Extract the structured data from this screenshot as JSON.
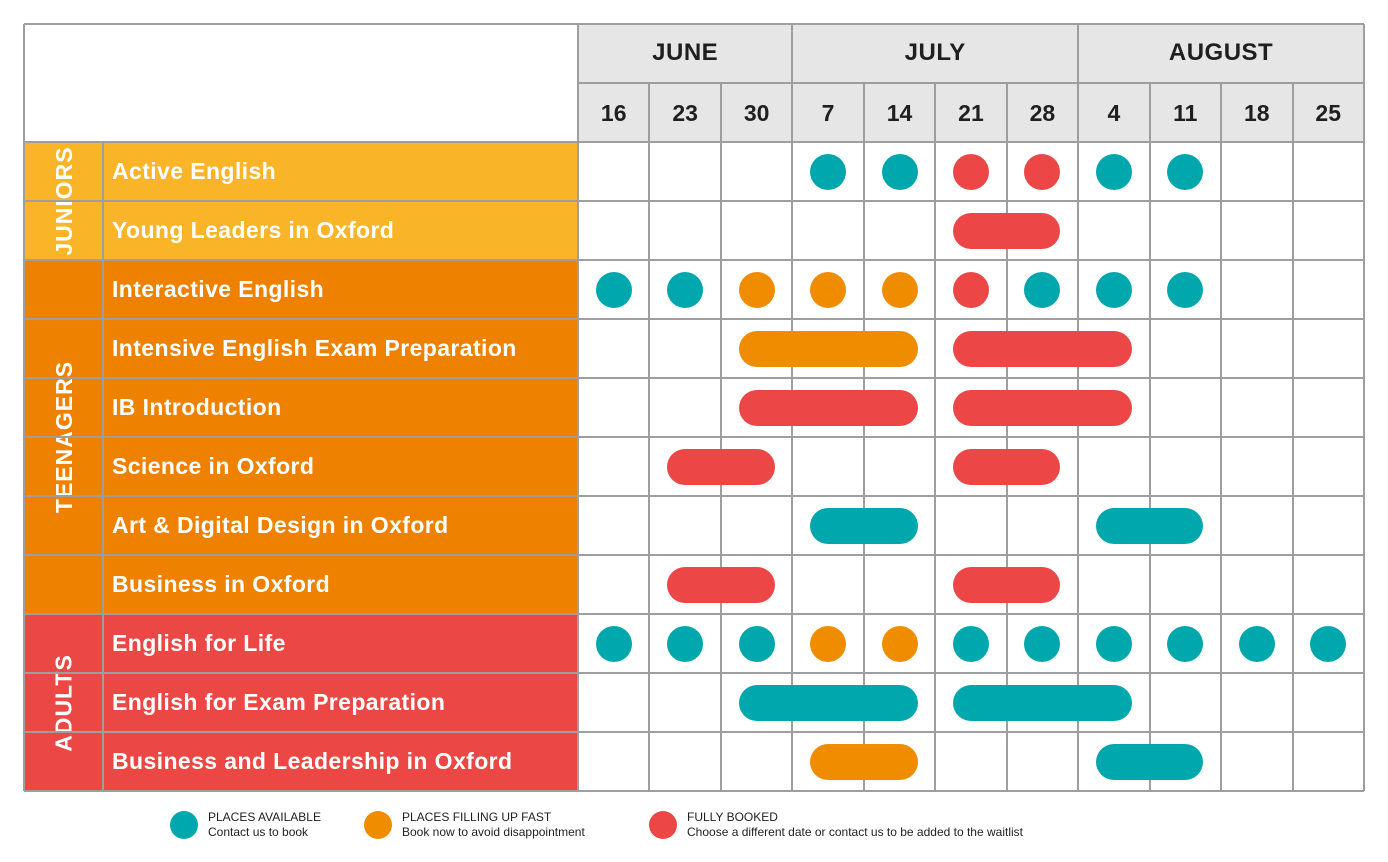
{
  "colors": {
    "available": "#00a8ad",
    "filling": "#f08c00",
    "booked": "#ec4646",
    "juniors_bg": "#f9b427",
    "teenagers_bg": "#ef8100",
    "adults_bg": "#eb4845",
    "header_bg": "#e6e6e6",
    "grid_line": "#9e9e9e"
  },
  "months": [
    {
      "label": "JUNE",
      "start": 0,
      "span": 3
    },
    {
      "label": "JULY",
      "start": 3,
      "span": 4
    },
    {
      "label": "AUGUST",
      "start": 7,
      "span": 4
    }
  ],
  "weeks": [
    "16",
    "23",
    "30",
    "7",
    "14",
    "21",
    "28",
    "4",
    "11",
    "18",
    "25"
  ],
  "groups": [
    {
      "label": "JUNIORS",
      "color": "#f9b427",
      "rows": 2
    },
    {
      "label": "TEENAGERS",
      "color": "#ef8100",
      "rows": 6
    },
    {
      "label": "ADULTS",
      "color": "#eb4845",
      "rows": 3
    }
  ],
  "courses": [
    {
      "name": "Active English",
      "marks": [
        {
          "type": "dot",
          "status": "available",
          "week": 3
        },
        {
          "type": "dot",
          "status": "available",
          "week": 4
        },
        {
          "type": "dot",
          "status": "booked",
          "week": 5
        },
        {
          "type": "dot",
          "status": "booked",
          "week": 6
        },
        {
          "type": "dot",
          "status": "available",
          "week": 7
        },
        {
          "type": "dot",
          "status": "available",
          "week": 8
        }
      ]
    },
    {
      "name": "Young Leaders in Oxford",
      "marks": [
        {
          "type": "bar",
          "status": "booked",
          "from": 5,
          "to": 6
        }
      ]
    },
    {
      "name": "Interactive English",
      "marks": [
        {
          "type": "dot",
          "status": "available",
          "week": 0
        },
        {
          "type": "dot",
          "status": "available",
          "week": 1
        },
        {
          "type": "dot",
          "status": "filling",
          "week": 2
        },
        {
          "type": "dot",
          "status": "filling",
          "week": 3
        },
        {
          "type": "dot",
          "status": "filling",
          "week": 4
        },
        {
          "type": "dot",
          "status": "booked",
          "week": 5
        },
        {
          "type": "dot",
          "status": "available",
          "week": 6
        },
        {
          "type": "dot",
          "status": "available",
          "week": 7
        },
        {
          "type": "dot",
          "status": "available",
          "week": 8
        }
      ]
    },
    {
      "name": "Intensive English Exam Preparation",
      "marks": [
        {
          "type": "bar",
          "status": "filling",
          "from": 2,
          "to": 4
        },
        {
          "type": "bar",
          "status": "booked",
          "from": 5,
          "to": 7
        }
      ]
    },
    {
      "name": "IB Introduction",
      "marks": [
        {
          "type": "bar",
          "status": "booked",
          "from": 2,
          "to": 4
        },
        {
          "type": "bar",
          "status": "booked",
          "from": 5,
          "to": 7
        }
      ]
    },
    {
      "name": "Science in Oxford",
      "marks": [
        {
          "type": "bar",
          "status": "booked",
          "from": 1,
          "to": 2
        },
        {
          "type": "bar",
          "status": "booked",
          "from": 5,
          "to": 6
        }
      ]
    },
    {
      "name": "Art & Digital Design in Oxford",
      "marks": [
        {
          "type": "bar",
          "status": "available",
          "from": 3,
          "to": 4
        },
        {
          "type": "bar",
          "status": "available",
          "from": 7,
          "to": 8
        }
      ]
    },
    {
      "name": "Business in Oxford",
      "marks": [
        {
          "type": "bar",
          "status": "booked",
          "from": 1,
          "to": 2
        },
        {
          "type": "bar",
          "status": "booked",
          "from": 5,
          "to": 6
        }
      ]
    },
    {
      "name": "English for Life",
      "marks": [
        {
          "type": "dot",
          "status": "available",
          "week": 0
        },
        {
          "type": "dot",
          "status": "available",
          "week": 1
        },
        {
          "type": "dot",
          "status": "available",
          "week": 2
        },
        {
          "type": "dot",
          "status": "filling",
          "week": 3
        },
        {
          "type": "dot",
          "status": "filling",
          "week": 4
        },
        {
          "type": "dot",
          "status": "available",
          "week": 5
        },
        {
          "type": "dot",
          "status": "available",
          "week": 6
        },
        {
          "type": "dot",
          "status": "available",
          "week": 7
        },
        {
          "type": "dot",
          "status": "available",
          "week": 8
        },
        {
          "type": "dot",
          "status": "available",
          "week": 9
        },
        {
          "type": "dot",
          "status": "available",
          "week": 10
        }
      ]
    },
    {
      "name": "English for Exam Preparation",
      "marks": [
        {
          "type": "bar",
          "status": "available",
          "from": 2,
          "to": 4
        },
        {
          "type": "bar",
          "status": "available",
          "from": 5,
          "to": 7
        }
      ]
    },
    {
      "name": "Business and Leadership in Oxford",
      "marks": [
        {
          "type": "bar",
          "status": "filling",
          "from": 3,
          "to": 4
        },
        {
          "type": "bar",
          "status": "available",
          "from": 7,
          "to": 8
        }
      ]
    }
  ],
  "legend": [
    {
      "status": "available",
      "title": "PLACES AVAILABLE",
      "subtitle": "Contact us to book"
    },
    {
      "status": "filling",
      "title": "PLACES FILLING UP FAST",
      "subtitle": "Book now to avoid disappointment"
    },
    {
      "status": "booked",
      "title": "FULLY BOOKED",
      "subtitle": "Choose a different date or contact us to be added to the waitlist"
    }
  ]
}
